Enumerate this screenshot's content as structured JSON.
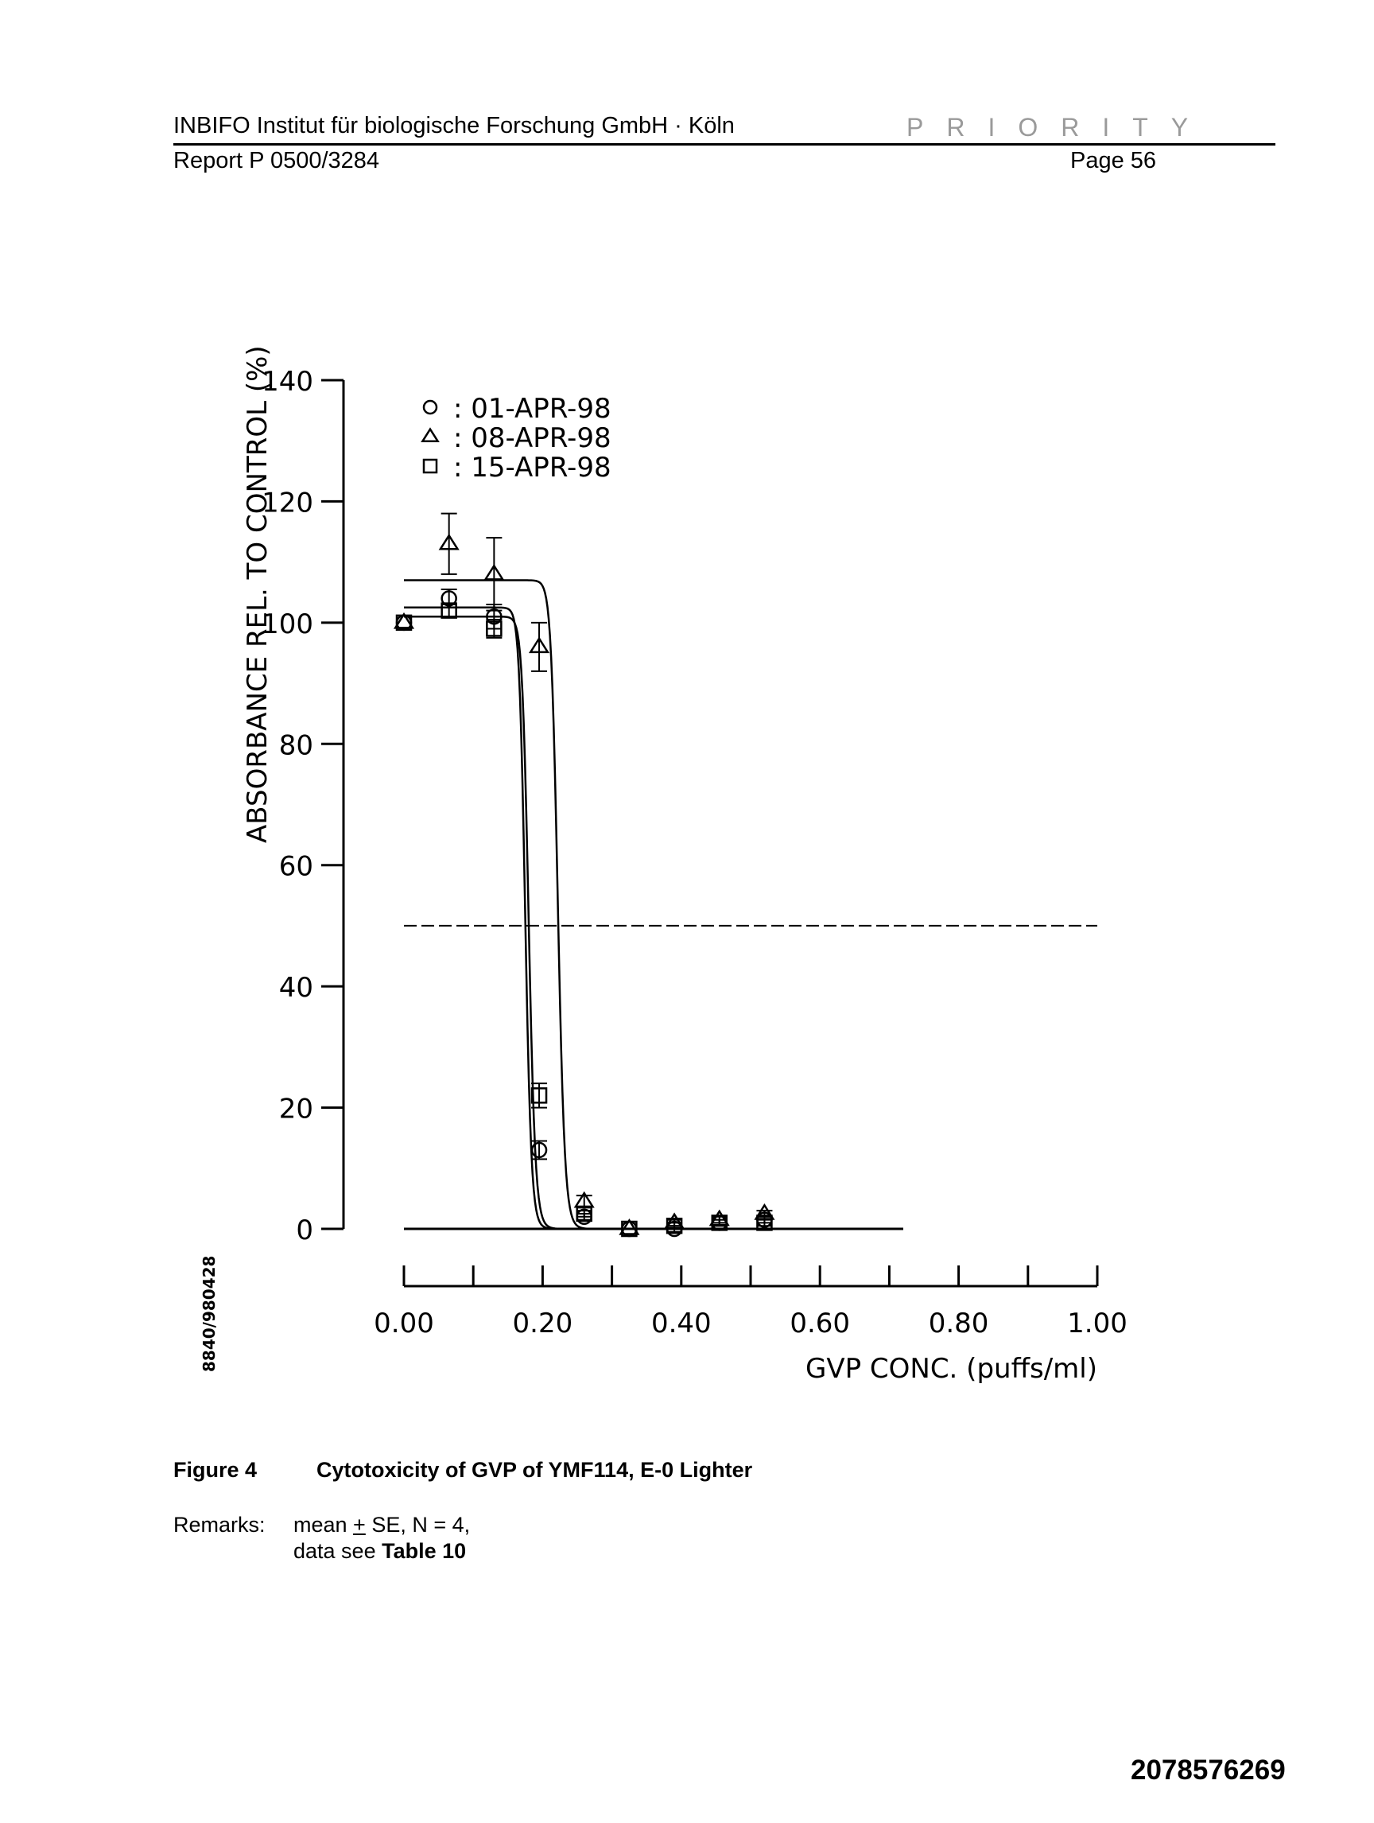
{
  "header": {
    "institute": "INBIFO Institut für biologische Forschung GmbH · Köln",
    "stamp": "PRIORITY",
    "report": "Report P 0500/3284",
    "page": "Page 56"
  },
  "side_code": "8840/980428",
  "figure": {
    "number": "Figure 4",
    "title": "Cytotoxicity of GVP of YMF114, E-0 Lighter"
  },
  "remarks": {
    "label": "Remarks:",
    "line1_pre": "mean ",
    "line1_pm": "+",
    "line1_post": " SE, N = 4,",
    "line2_pre": "data see ",
    "line2_bold": "Table 10"
  },
  "doc_number": "2078576269",
  "chart_data": {
    "type": "scatter",
    "xlabel": "GVP CONC. (puffs/ml)",
    "ylabel": "ABSORBANCE REL. TO CONTROL (%)",
    "xlim": [
      0.0,
      1.0
    ],
    "ylim": [
      0,
      140
    ],
    "x_ticks": [
      "0.00",
      "0.20",
      "0.40",
      "0.60",
      "0.80",
      "1.00"
    ],
    "x_minor_ticks": [
      0.1,
      0.3,
      0.5,
      0.7,
      0.9
    ],
    "y_ticks": [
      "0",
      "20",
      "40",
      "60",
      "80",
      "100",
      "120",
      "140"
    ],
    "reference_line": {
      "y": 50,
      "style": "dashed",
      "x_range": [
        0.0,
        1.0
      ]
    },
    "legend_position": "top-left",
    "series": [
      {
        "name": "01-APR-98",
        "marker": "circle",
        "x": [
          0.0,
          0.065,
          0.13,
          0.195,
          0.26,
          0.325,
          0.39,
          0.455,
          0.52
        ],
        "y": [
          100,
          104,
          101,
          13,
          2,
          0,
          0,
          1,
          1.5
        ],
        "err": [
          0,
          1.5,
          2,
          1.5,
          0.5,
          0,
          0.5,
          0.5,
          0.5
        ],
        "fit": {
          "top": 102.5,
          "bottom": 0,
          "ec50": 0.175,
          "hill": 40,
          "x_range": [
            0.0,
            0.72
          ]
        }
      },
      {
        "name": "08-APR-98",
        "marker": "triangle",
        "x": [
          0.0,
          0.065,
          0.13,
          0.195,
          0.26,
          0.325,
          0.39,
          0.455,
          0.52
        ],
        "y": [
          100,
          113,
          108,
          96,
          4.5,
          0,
          1,
          1.5,
          2.5
        ],
        "err": [
          0,
          5,
          6,
          4,
          1,
          0,
          0.5,
          0.5,
          0.5
        ],
        "fit": {
          "top": 107,
          "bottom": 0,
          "ec50": 0.222,
          "hill": 45,
          "x_range": [
            0.0,
            0.72
          ]
        }
      },
      {
        "name": "15-APR-98",
        "marker": "square",
        "x": [
          0.0,
          0.065,
          0.13,
          0.195,
          0.26,
          0.325,
          0.39,
          0.455,
          0.52
        ],
        "y": [
          100,
          102,
          99,
          22,
          2.5,
          0,
          0.5,
          1,
          1
        ],
        "err": [
          0,
          1,
          1.5,
          2,
          0.5,
          0,
          0.5,
          0.5,
          0.5
        ],
        "fit": {
          "top": 101,
          "bottom": 0,
          "ec50": 0.18,
          "hill": 38,
          "x_range": [
            0.0,
            0.72
          ]
        }
      }
    ]
  }
}
